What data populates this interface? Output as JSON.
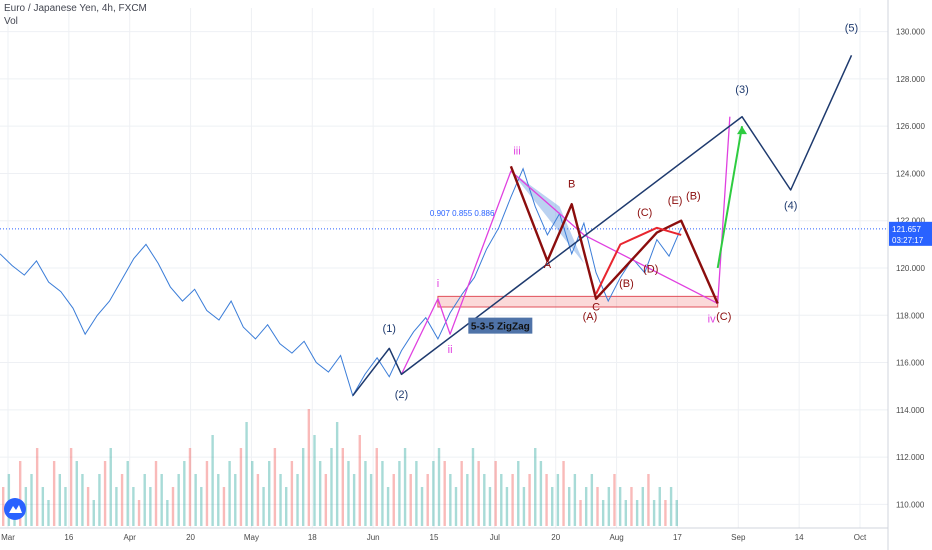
{
  "header": {
    "symbol_title": "Euro / Japanese Yen, 4h, FXCM",
    "volume_label": "Vol"
  },
  "colors": {
    "price_line": "#3b7dd8",
    "wave_navy": "#1e3a6e",
    "wave_magenta": "#e040e0",
    "wave_darkred": "#8b0d0d",
    "wave_red": "#e8262f",
    "wave_green": "#2ecc40",
    "price_tag_bg": "#2962ff",
    "zigzag_box": "#4f73a8",
    "vol_up": "#26a69a",
    "vol_down": "#ef5350"
  },
  "chart_data": {
    "type": "line",
    "ylim": [
      109,
      131
    ],
    "y_ticks": [
      "130.000",
      "128.000",
      "126.000",
      "124.000",
      "122.000",
      "120.000",
      "118.000",
      "116.000",
      "114.000",
      "112.000",
      "110.000"
    ],
    "x_ticks": [
      "Mar",
      "16",
      "Apr",
      "20",
      "May",
      "18",
      "Jun",
      "15",
      "Jul",
      "20",
      "Aug",
      "17",
      "Sep",
      "14",
      "Oct"
    ],
    "last_price": "121.657",
    "countdown": "03:27:17",
    "fib_text": "0.907  0.855  0.886",
    "zigzag_box_label": "5-3-5 ZigZag",
    "price_series": [
      {
        "x": 0,
        "y": 120.6
      },
      {
        "x": 2,
        "y": 120.1
      },
      {
        "x": 4,
        "y": 119.7
      },
      {
        "x": 6,
        "y": 120.3
      },
      {
        "x": 8,
        "y": 119.4
      },
      {
        "x": 10,
        "y": 119.0
      },
      {
        "x": 12,
        "y": 118.3
      },
      {
        "x": 14,
        "y": 117.2
      },
      {
        "x": 16,
        "y": 118.0
      },
      {
        "x": 18,
        "y": 118.6
      },
      {
        "x": 20,
        "y": 119.5
      },
      {
        "x": 22,
        "y": 120.4
      },
      {
        "x": 24,
        "y": 121.0
      },
      {
        "x": 26,
        "y": 120.2
      },
      {
        "x": 28,
        "y": 119.2
      },
      {
        "x": 30,
        "y": 118.6
      },
      {
        "x": 32,
        "y": 119.1
      },
      {
        "x": 34,
        "y": 118.2
      },
      {
        "x": 36,
        "y": 117.8
      },
      {
        "x": 38,
        "y": 118.6
      },
      {
        "x": 40,
        "y": 117.5
      },
      {
        "x": 42,
        "y": 117.0
      },
      {
        "x": 44,
        "y": 117.6
      },
      {
        "x": 46,
        "y": 116.8
      },
      {
        "x": 48,
        "y": 116.4
      },
      {
        "x": 50,
        "y": 116.9
      },
      {
        "x": 52,
        "y": 116.0
      },
      {
        "x": 54,
        "y": 115.6
      },
      {
        "x": 56,
        "y": 116.3
      },
      {
        "x": 58,
        "y": 114.6
      },
      {
        "x": 60,
        "y": 115.5
      },
      {
        "x": 62,
        "y": 116.2
      },
      {
        "x": 64,
        "y": 115.4
      },
      {
        "x": 66,
        "y": 116.5
      },
      {
        "x": 68,
        "y": 117.3
      },
      {
        "x": 70,
        "y": 117.9
      },
      {
        "x": 72,
        "y": 117.0
      },
      {
        "x": 74,
        "y": 118.1
      },
      {
        "x": 76,
        "y": 118.9
      },
      {
        "x": 78,
        "y": 119.6
      },
      {
        "x": 80,
        "y": 120.8
      },
      {
        "x": 82,
        "y": 121.7
      },
      {
        "x": 84,
        "y": 123.0
      },
      {
        "x": 86,
        "y": 124.2
      },
      {
        "x": 88,
        "y": 122.6
      },
      {
        "x": 90,
        "y": 121.4
      },
      {
        "x": 92,
        "y": 122.3
      },
      {
        "x": 94,
        "y": 120.6
      },
      {
        "x": 96,
        "y": 121.9
      },
      {
        "x": 98,
        "y": 119.8
      },
      {
        "x": 100,
        "y": 118.6
      },
      {
        "x": 102,
        "y": 119.6
      },
      {
        "x": 104,
        "y": 120.4
      },
      {
        "x": 106,
        "y": 119.8
      },
      {
        "x": 108,
        "y": 121.2
      },
      {
        "x": 110,
        "y": 120.5
      },
      {
        "x": 112,
        "y": 121.7
      }
    ],
    "zigzag_zone": {
      "y_low": 118.35,
      "y_high": 118.8
    },
    "waves": {
      "navy": [
        {
          "x": 58,
          "y": 114.6
        },
        {
          "x": 64,
          "y": 116.6
        },
        {
          "x": 66,
          "y": 115.5
        },
        {
          "x": 122,
          "y": 126.4
        },
        {
          "x": 130,
          "y": 123.3
        },
        {
          "x": 140,
          "y": 129.0
        }
      ],
      "magenta": [
        {
          "x": 66,
          "y": 115.5
        },
        {
          "x": 72,
          "y": 118.7
        },
        {
          "x": 74,
          "y": 117.2
        },
        {
          "x": 84,
          "y": 124.1
        },
        {
          "x": 96,
          "y": 121.4
        },
        {
          "x": 118,
          "y": 118.5
        },
        {
          "x": 120,
          "y": 126.4
        }
      ],
      "dark_red": [
        {
          "x": 84,
          "y": 124.3
        },
        {
          "x": 90,
          "y": 120.3
        },
        {
          "x": 94,
          "y": 122.7
        },
        {
          "x": 98,
          "y": 118.7
        },
        {
          "x": 108,
          "y": 121.5
        },
        {
          "x": 112,
          "y": 122.0
        },
        {
          "x": 118,
          "y": 118.5
        }
      ],
      "red": [
        {
          "x": 98,
          "y": 118.9
        },
        {
          "x": 102,
          "y": 121.0
        },
        {
          "x": 108,
          "y": 121.7
        },
        {
          "x": 112,
          "y": 121.4
        }
      ],
      "green": [
        {
          "x": 118,
          "y": 120.0
        },
        {
          "x": 122,
          "y": 126.0
        }
      ]
    },
    "annotations": [
      {
        "text": "(1)",
        "x": 64,
        "y": 117.3,
        "color": "navy"
      },
      {
        "text": "(2)",
        "x": 66,
        "y": 114.5,
        "color": "navy"
      },
      {
        "text": "(3)",
        "x": 122,
        "y": 127.4,
        "color": "navy"
      },
      {
        "text": "(4)",
        "x": 130,
        "y": 122.5,
        "color": "navy"
      },
      {
        "text": "(5)",
        "x": 140,
        "y": 130.0,
        "color": "navy"
      },
      {
        "text": "i",
        "x": 72,
        "y": 119.2,
        "color": "magenta"
      },
      {
        "text": "ii",
        "x": 74,
        "y": 116.4,
        "color": "magenta"
      },
      {
        "text": "iii",
        "x": 85,
        "y": 124.8,
        "color": "magenta"
      },
      {
        "text": "iv",
        "x": 117,
        "y": 117.7,
        "color": "magenta"
      },
      {
        "text": "(A)",
        "x": 97,
        "y": 117.8,
        "color": "darkred"
      },
      {
        "text": "(B)",
        "x": 114,
        "y": 122.9,
        "color": "darkred"
      },
      {
        "text": "(C)",
        "x": 119,
        "y": 117.8,
        "color": "darkred"
      },
      {
        "text": "(C)",
        "x": 106,
        "y": 122.2,
        "color": "darkred"
      },
      {
        "text": "(D)",
        "x": 107,
        "y": 119.8,
        "color": "darkred"
      },
      {
        "text": "(E)",
        "x": 111,
        "y": 122.7,
        "color": "darkred"
      },
      {
        "text": "(B)",
        "x": 103,
        "y": 119.2,
        "color": "darkred"
      },
      {
        "text": "A",
        "x": 90,
        "y": 120.0,
        "color": "darkred"
      },
      {
        "text": "B",
        "x": 94,
        "y": 123.4,
        "color": "darkred"
      },
      {
        "text": "C",
        "x": 98,
        "y": 118.2,
        "color": "darkred"
      }
    ],
    "volume": [
      3,
      4,
      2,
      5,
      3,
      4,
      6,
      3,
      2,
      5,
      4,
      3,
      6,
      5,
      4,
      3,
      2,
      4,
      5,
      6,
      3,
      4,
      5,
      3,
      2,
      4,
      3,
      5,
      4,
      2,
      3,
      4,
      5,
      6,
      4,
      3,
      5,
      7,
      4,
      3,
      5,
      4,
      6,
      8,
      5,
      4,
      3,
      5,
      6,
      4,
      3,
      5,
      4,
      6,
      9,
      7,
      5,
      4,
      6,
      8,
      6,
      5,
      4,
      7,
      5,
      4,
      6,
      5,
      3,
      4,
      5,
      6,
      4,
      5,
      3,
      4,
      5,
      6,
      5,
      4,
      3,
      5,
      4,
      6,
      5,
      4,
      3,
      5,
      4,
      3,
      4,
      5,
      3,
      4,
      6,
      5,
      4,
      3,
      4,
      5,
      3,
      4,
      2,
      3,
      4,
      3,
      2,
      3,
      4,
      3,
      2,
      3,
      2,
      3,
      4,
      2,
      3,
      2,
      3,
      2
    ]
  }
}
